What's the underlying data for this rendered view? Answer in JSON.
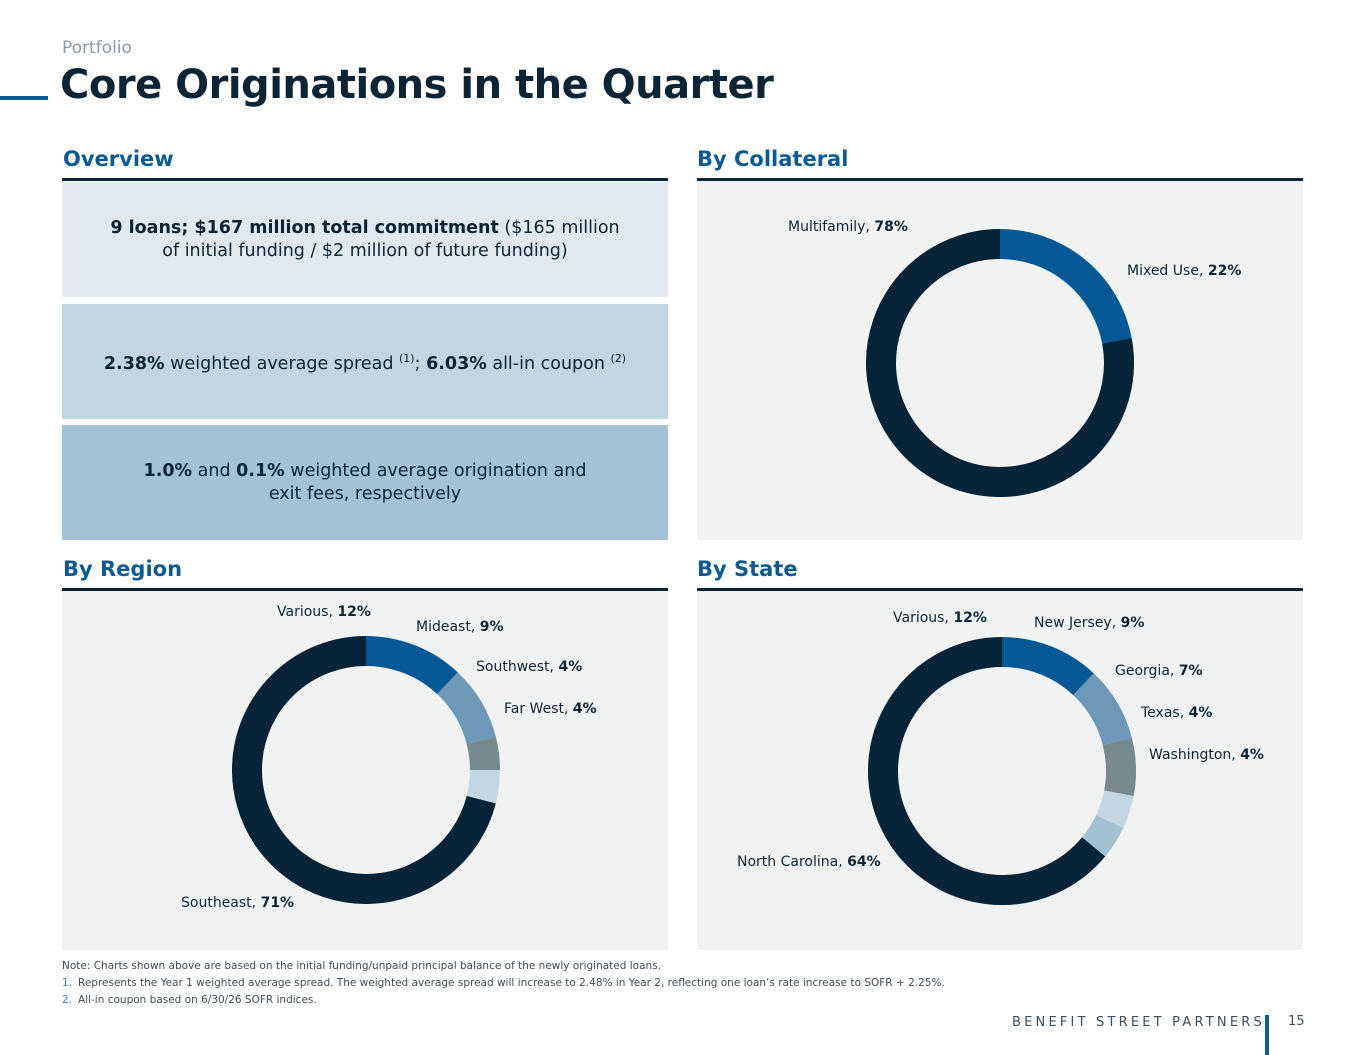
{
  "header": {
    "eyebrow": "Portfolio",
    "title": "Core Originations in the Quarter"
  },
  "overview": {
    "heading": "Overview",
    "box1": {
      "bold": "9 loans; $167 million total commitment",
      "rest_line1": " ($165 million",
      "line2": "of initial funding / $2 million of future funding)"
    },
    "box2": {
      "v1": "2.38%",
      "t1": " weighted average spread ",
      "sup1": "(1)",
      "t2": "; ",
      "v2": "6.03%",
      "t3": " all-in coupon ",
      "sup2": "(2)"
    },
    "box3": {
      "v1": "1.0%",
      "t1": " and ",
      "v2": "0.1%",
      "t2": " weighted average origination and",
      "line2": "exit fees, respectively"
    }
  },
  "chart_data": [
    {
      "type": "pie",
      "title": "By Collateral",
      "categories": [
        "Multifamily",
        "Mixed Use"
      ],
      "values": [
        78,
        22
      ],
      "labels": [
        "78%",
        "22%"
      ],
      "colors": [
        "#062337",
        "#045896"
      ]
    },
    {
      "type": "pie",
      "title": "By Region",
      "categories": [
        "Southeast",
        "Various",
        "Mideast",
        "Southwest",
        "Far West"
      ],
      "values": [
        71,
        12,
        9,
        4,
        4
      ],
      "labels": [
        "71%",
        "12%",
        "9%",
        "4%",
        "4%"
      ],
      "colors": [
        "#062337",
        "#045896",
        "#6e98b8",
        "#76898f",
        "#c3d6e2"
      ]
    },
    {
      "type": "pie",
      "title": "By State",
      "categories": [
        "North Carolina",
        "Various",
        "New Jersey",
        "Georgia",
        "Texas",
        "Washington"
      ],
      "values": [
        64,
        12,
        9,
        7,
        4,
        4
      ],
      "labels": [
        "64%",
        "12%",
        "9%",
        "7%",
        "4%",
        "4%"
      ],
      "colors": [
        "#062337",
        "#045896",
        "#6e98b8",
        "#76898f",
        "#c3d6e2",
        "#a2c1d3"
      ]
    }
  ],
  "notes": {
    "note": "Note: Charts shown above are based on the initial funding/unpaid principal balance of the newly originated loans.",
    "items": [
      {
        "num": "1.",
        "text": "Represents the Year 1 weighted average spread. The weighted average spread will increase to 2.48% in Year 2, reflecting one loan’s rate increase to SOFR + 2.25%."
      },
      {
        "num": "2.",
        "text": "All-in coupon based on 6/30/26 SOFR indices."
      }
    ]
  },
  "footer": {
    "brand": "BENEFIT STREET PARTNERS",
    "page": "15"
  }
}
